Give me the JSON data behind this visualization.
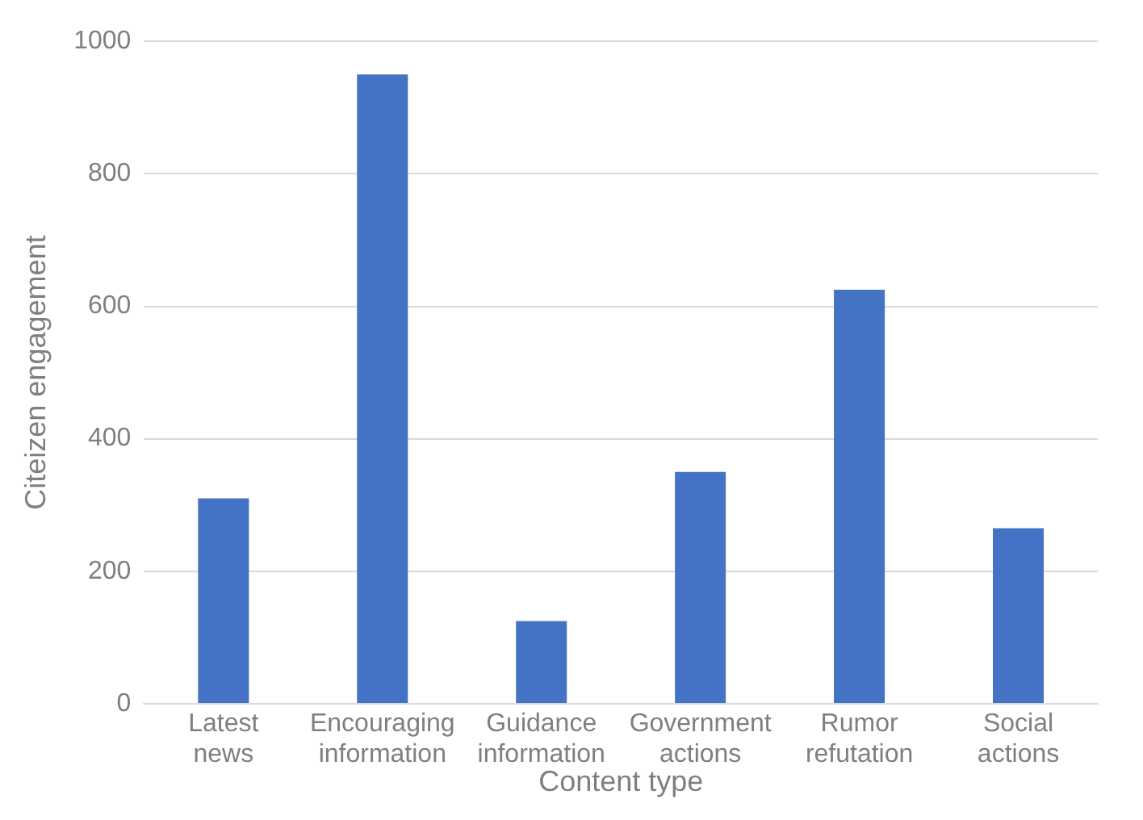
{
  "chart_data": {
    "type": "bar",
    "xlabel": "Content type",
    "ylabel": "Citeizen engagement",
    "categories": [
      "Latest news",
      "Encouraging information",
      "Guidance information",
      "Government actions",
      "Rumor refutation",
      "Social actions"
    ],
    "values": [
      310,
      950,
      125,
      350,
      625,
      265
    ],
    "color": "#4472c4",
    "ylim": [
      0,
      1000
    ],
    "yticks": [
      0,
      200,
      400,
      600,
      800,
      1000
    ],
    "grid": "y"
  }
}
